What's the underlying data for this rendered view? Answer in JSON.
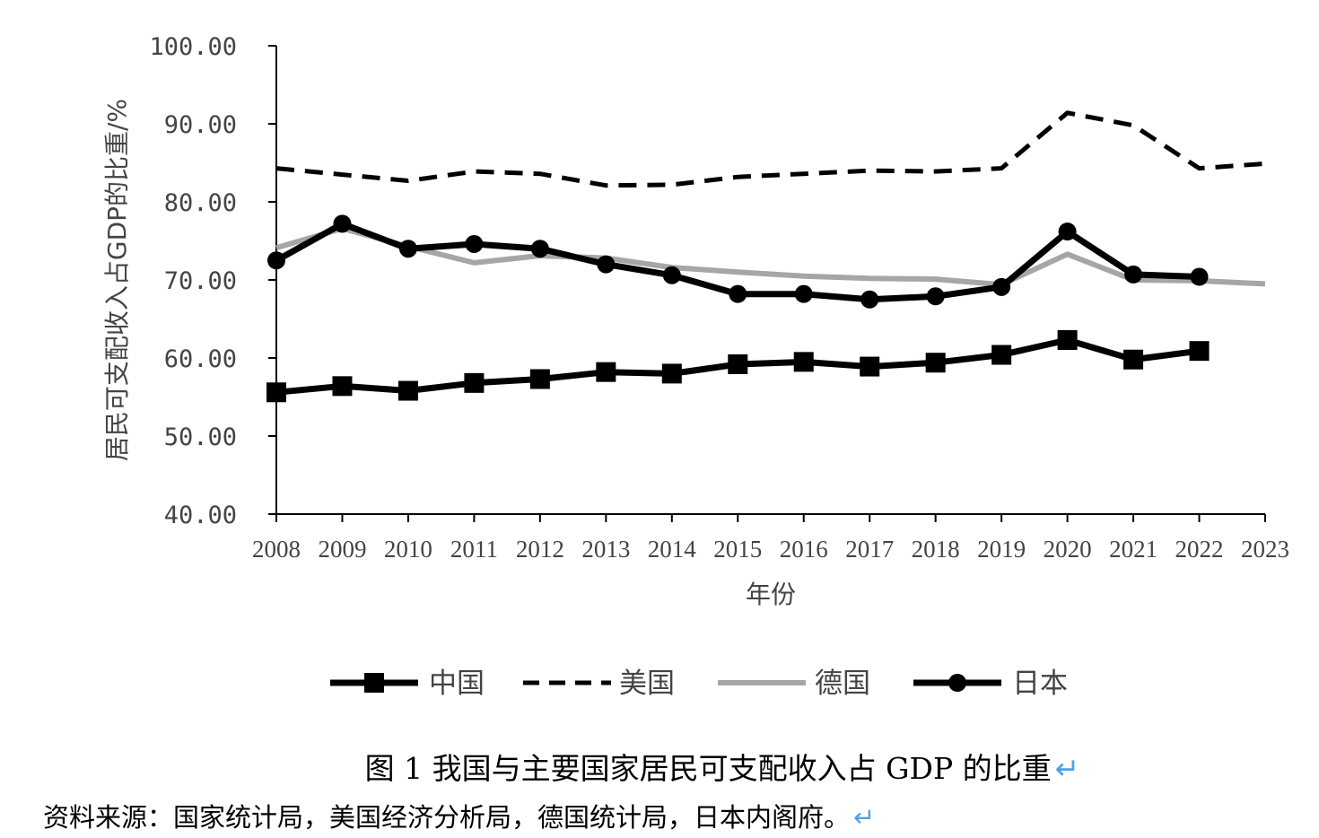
{
  "chart_data": {
    "type": "line",
    "title": "",
    "xlabel": "年份",
    "ylabel": "居民可支配收入占GDP的比重/%",
    "ylim": [
      40,
      100
    ],
    "yticks": [
      "40.00",
      "50.00",
      "60.00",
      "70.00",
      "80.00",
      "90.00",
      "100.00"
    ],
    "x": [
      "2008",
      "2009",
      "2010",
      "2011",
      "2012",
      "2013",
      "2014",
      "2015",
      "2016",
      "2017",
      "2018",
      "2019",
      "2020",
      "2021",
      "2022",
      "2023"
    ],
    "legend_position": "bottom",
    "grid": false,
    "series": [
      {
        "name": "中国",
        "color": "#000000",
        "style": "solid-square",
        "values": [
          55.6,
          56.4,
          55.8,
          56.8,
          57.3,
          58.2,
          58.0,
          59.2,
          59.5,
          58.9,
          59.4,
          60.4,
          62.3,
          59.8,
          60.9,
          null
        ]
      },
      {
        "name": "美国",
        "color": "#000000",
        "style": "dashed",
        "values": [
          84.3,
          83.5,
          82.7,
          83.9,
          83.6,
          82.1,
          82.2,
          83.2,
          83.6,
          84.0,
          83.9,
          84.3,
          91.4,
          89.8,
          84.3,
          84.9
        ]
      },
      {
        "name": "德国",
        "color": "#a6a6a6",
        "style": "solid-gray",
        "values": [
          74.1,
          76.6,
          74.3,
          72.2,
          73.1,
          72.8,
          71.6,
          71.0,
          70.5,
          70.2,
          70.1,
          69.4,
          73.3,
          70.0,
          69.9,
          69.5
        ]
      },
      {
        "name": "日本",
        "color": "#000000",
        "style": "solid-circle",
        "values": [
          72.5,
          77.2,
          74.0,
          74.6,
          74.0,
          72.0,
          70.6,
          68.2,
          68.2,
          67.5,
          67.9,
          69.1,
          76.2,
          70.7,
          70.4,
          null
        ]
      }
    ]
  },
  "caption": {
    "text": "图 1  我国与主要国家居民可支配收入占 GDP 的比重",
    "mark": "↵"
  },
  "source": {
    "text": "资料来源：国家统计局，美国经济分析局，德国统计局，日本内阁府。",
    "mark": "↵"
  }
}
